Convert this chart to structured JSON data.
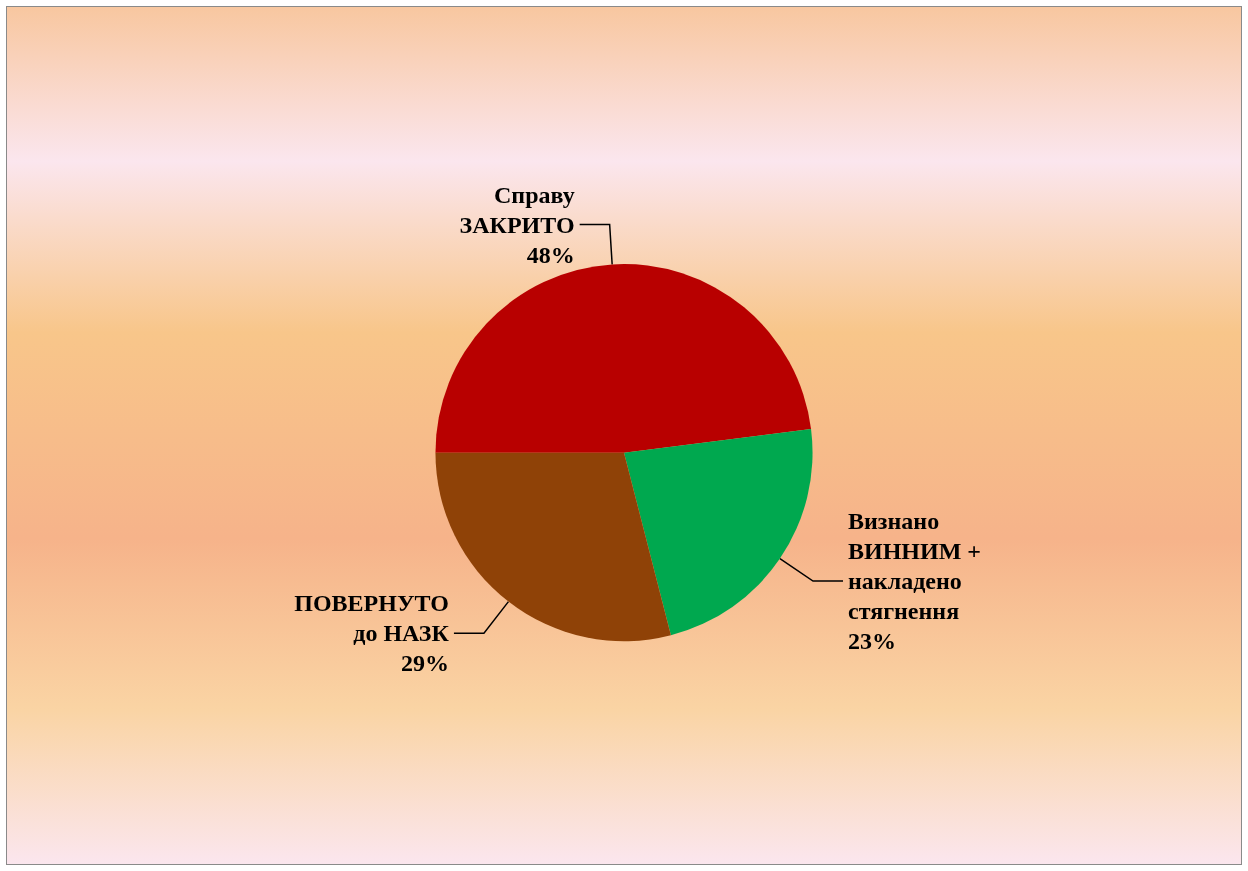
{
  "chart_data": {
    "type": "pie",
    "categories": [
      "Справу\nЗАКРИТО",
      "Визнано\nВИННИМ +\nнакладено\nстягнення",
      "ПОВЕРНУТО\nдо НАЗК"
    ],
    "values": [
      48,
      23,
      29
    ],
    "value_labels": [
      "48%",
      "23%",
      "29%"
    ],
    "colors": [
      "#b80000",
      "#00a84f",
      "#8f4207"
    ]
  }
}
